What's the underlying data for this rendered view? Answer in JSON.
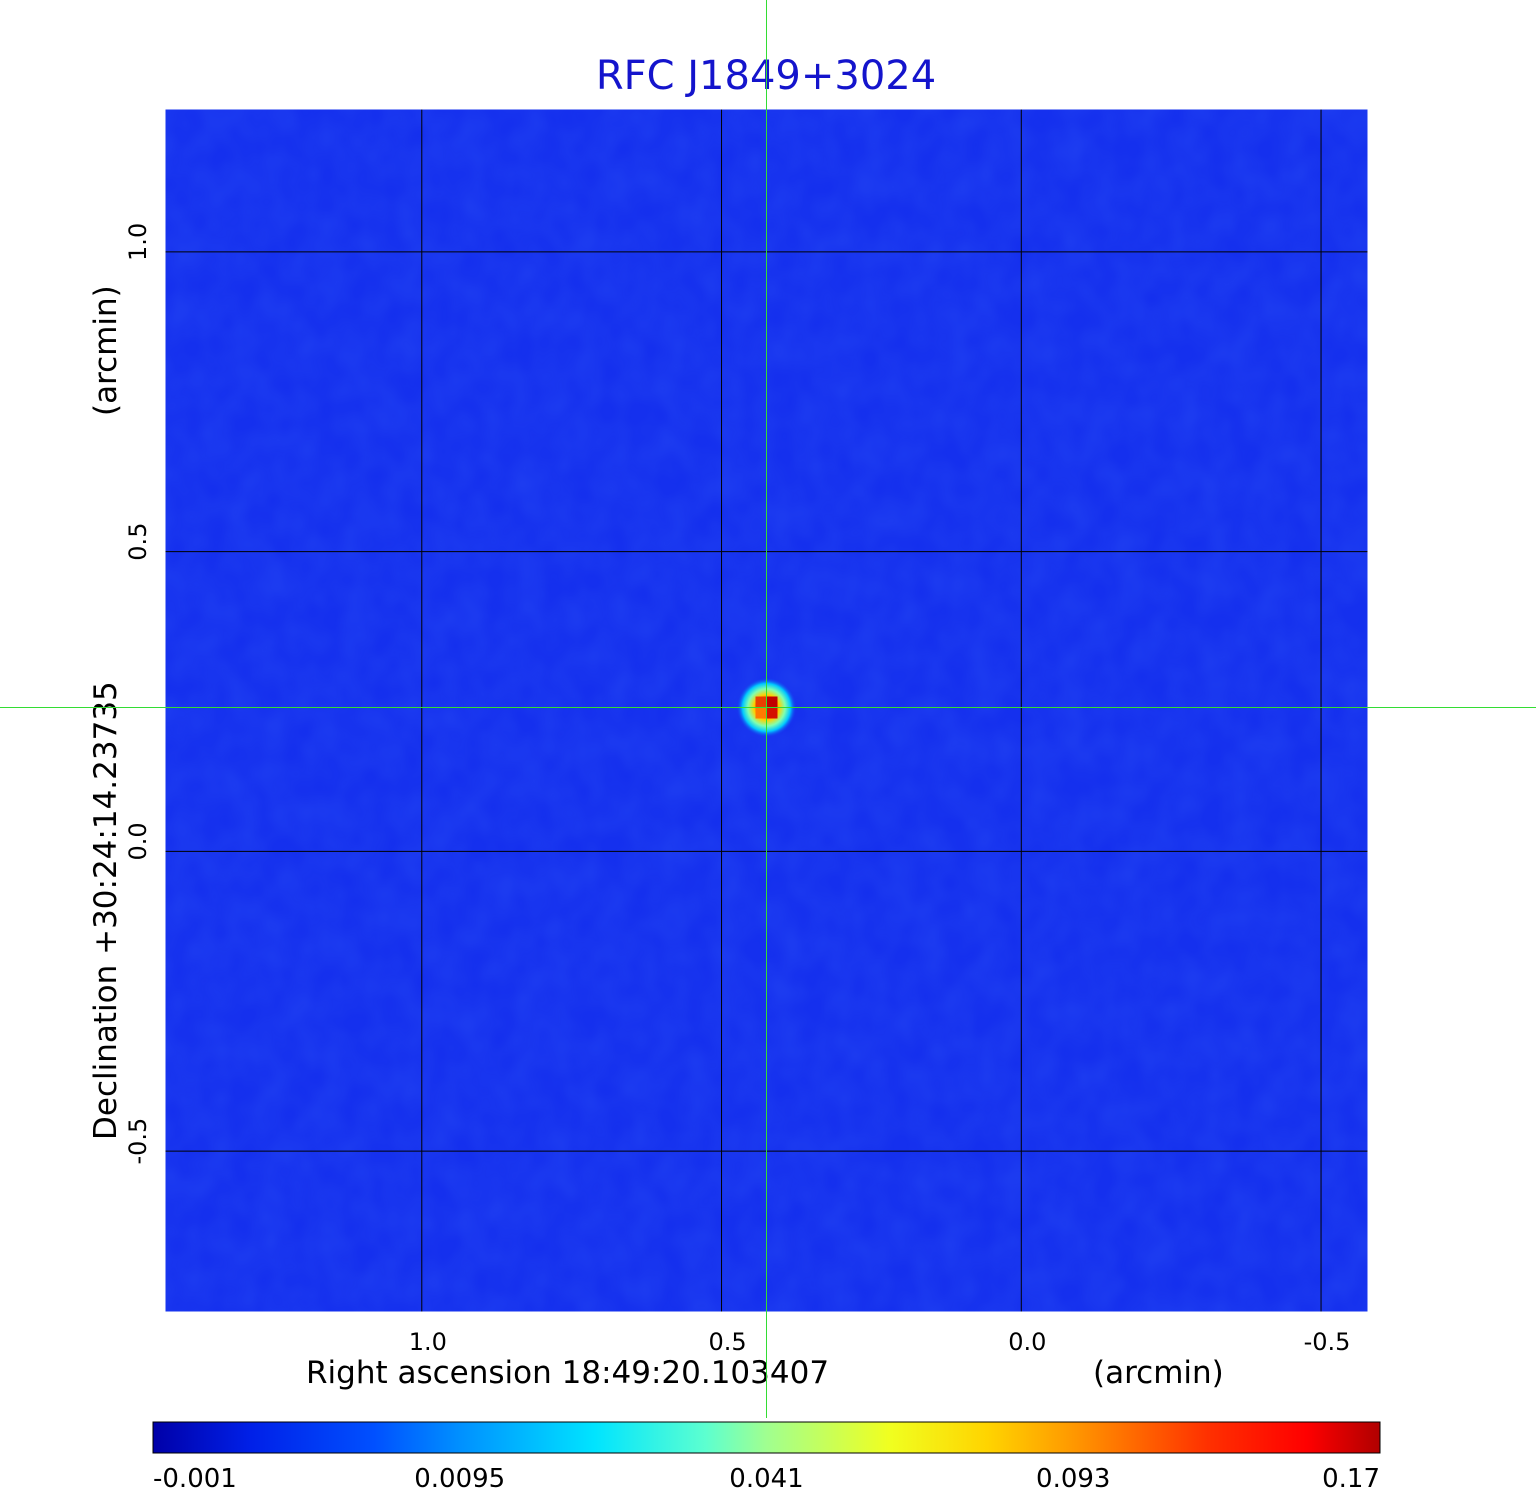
{
  "chart_data": {
    "type": "heatmap",
    "title": "RFC J1849+3024",
    "xlabel": "Right ascension  18:49:20.103407",
    "xunit": "(arcmin)",
    "ylabel": "Declination  +30:24:14.23735",
    "yunit": "(arcmin)",
    "xlim": [
      1.43,
      -0.58
    ],
    "ylim": [
      -0.77,
      1.24
    ],
    "x_ticks": [
      {
        "value": 1.0,
        "label": "1.0"
      },
      {
        "value": 0.5,
        "label": "0.5"
      },
      {
        "value": 0.0,
        "label": "0.0"
      },
      {
        "value": -0.5,
        "label": "-0.5"
      }
    ],
    "y_ticks": [
      {
        "value": 1.0,
        "label": "1.0"
      },
      {
        "value": 0.5,
        "label": "0.5"
      },
      {
        "value": 0.0,
        "label": "0.0"
      },
      {
        "value": -0.5,
        "label": "-0.5"
      }
    ],
    "grid": true,
    "source_peak": {
      "x": 0.425,
      "y": 0.24,
      "value": 0.17
    },
    "crosshair": {
      "x": 0.425,
      "y": 0.24,
      "color": "#33dd33"
    },
    "colormap": "jet",
    "colorbar": {
      "min": -0.001,
      "max": 0.17,
      "ticks": [
        "-0.001",
        "0.0095",
        "0.041",
        "0.093",
        "0.17"
      ]
    },
    "colors": {
      "background_level": "#1530ee",
      "title": "#1414cc",
      "grid": "#000000",
      "crosshair": "#33dd33"
    }
  }
}
